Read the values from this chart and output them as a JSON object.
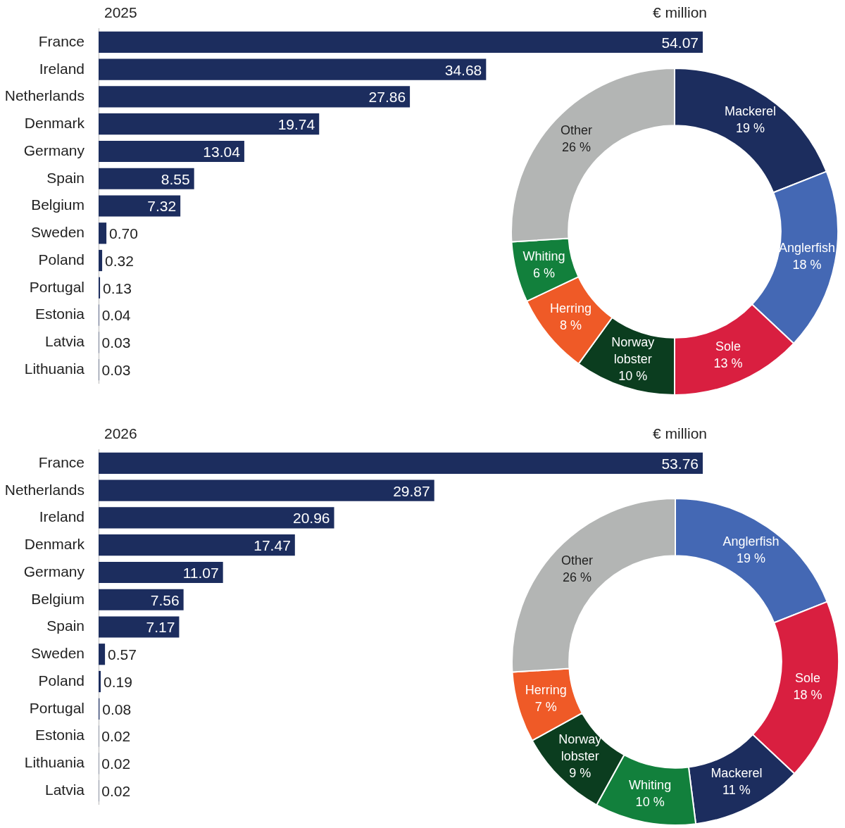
{
  "chart_data": [
    {
      "type": "bar",
      "orientation": "horizontal",
      "title": "2025",
      "xlabel": "€ million",
      "color": "#1c2d5e",
      "categories": [
        "France",
        "Ireland",
        "Netherlands",
        "Denmark",
        "Germany",
        "Spain",
        "Belgium",
        "Sweden",
        "Poland",
        "Portugal",
        "Estonia",
        "Latvia",
        "Lithuania"
      ],
      "values": [
        54.07,
        34.68,
        27.86,
        19.74,
        13.04,
        8.55,
        7.32,
        0.7,
        0.32,
        0.13,
        0.04,
        0.03,
        0.03
      ],
      "value_labels": [
        "54.07",
        "34.68",
        "27.86",
        "19.74",
        "13.04",
        "8.55",
        "7.32",
        "0.70",
        "0.32",
        "0.13",
        "0.04",
        "0.03",
        "0.03"
      ]
    },
    {
      "type": "donut",
      "categories": [
        "Mackerel",
        "Anglerfish",
        "Sole",
        "Norway lobster",
        "Herring",
        "Whiting",
        "Other"
      ],
      "values": [
        19,
        18,
        13,
        10,
        8,
        6,
        26
      ],
      "value_labels": [
        "19 %",
        "18 %",
        "13 %",
        "10 %",
        "8 %",
        "6 %",
        "26 %"
      ],
      "colors": [
        "#1c2d5e",
        "#4468b4",
        "#d91f40",
        "#0b3d1f",
        "#ef5a27",
        "#12803c",
        "#b3b5b4"
      ]
    },
    {
      "type": "bar",
      "orientation": "horizontal",
      "title": "2026",
      "xlabel": "€ million",
      "color": "#1c2d5e",
      "categories": [
        "France",
        "Netherlands",
        "Ireland",
        "Denmark",
        "Germany",
        "Belgium",
        "Spain",
        "Sweden",
        "Poland",
        "Portugal",
        "Estonia",
        "Lithuania",
        "Latvia"
      ],
      "values": [
        53.76,
        29.87,
        20.96,
        17.47,
        11.07,
        7.56,
        7.17,
        0.57,
        0.19,
        0.08,
        0.02,
        0.02,
        0.02
      ],
      "value_labels": [
        "53.76",
        "29.87",
        "20.96",
        "17.47",
        "11.07",
        "7.56",
        "7.17",
        "0.57",
        "0.19",
        "0.08",
        "0.02",
        "0.02",
        "0.02"
      ]
    },
    {
      "type": "donut",
      "categories": [
        "Anglerfish",
        "Sole",
        "Mackerel",
        "Whiting",
        "Norway lobster",
        "Herring",
        "Other"
      ],
      "values": [
        19,
        18,
        11,
        10,
        9,
        7,
        26
      ],
      "value_labels": [
        "19 %",
        "18 %",
        "11 %",
        "10 %",
        "9 %",
        "7 %",
        "26 %"
      ],
      "colors": [
        "#4468b4",
        "#d91f40",
        "#1c2d5e",
        "#12803c",
        "#0b3d1f",
        "#ef5a27",
        "#b3b5b4"
      ]
    }
  ]
}
